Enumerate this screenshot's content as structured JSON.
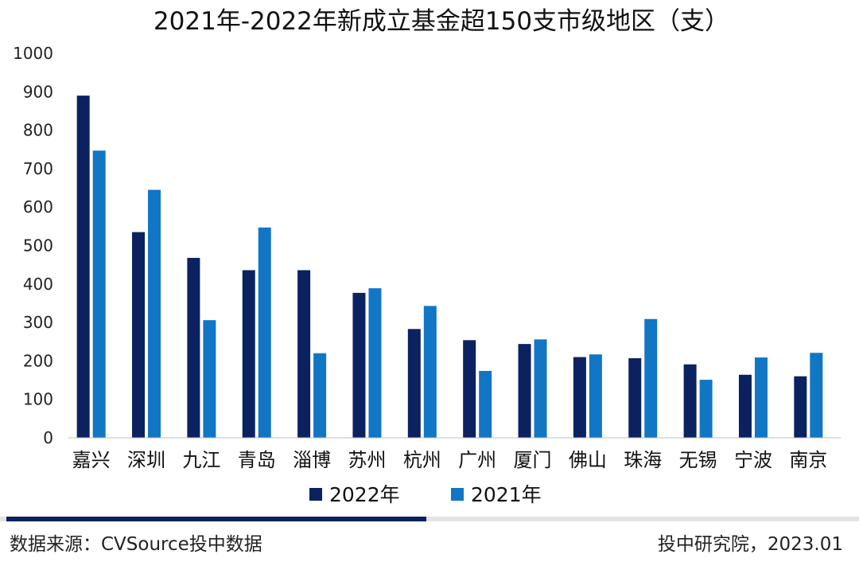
{
  "colors": {
    "series_2022": "#0b2160",
    "series_2021": "#1176c4",
    "footer_bar": "#0b2160",
    "footer_track": "#e4e4e4"
  },
  "footer": {
    "source": "数据来源：CVSource投中数据",
    "credit": "投中研究院，2023.01"
  },
  "chart_data": {
    "type": "bar",
    "title": "2021年-2022年新成立基金超150支市级地区（支）",
    "xlabel": "",
    "ylabel": "",
    "ylim": [
      0,
      1000
    ],
    "yticks": [
      "0",
      "100",
      "200",
      "300",
      "400",
      "500",
      "600",
      "700",
      "800",
      "900",
      "1000"
    ],
    "grid": false,
    "legend": "bottom-center",
    "categories": [
      "嘉兴",
      "深圳",
      "九江",
      "青岛",
      "淄博",
      "苏州",
      "杭州",
      "广州",
      "厦门",
      "佛山",
      "珠海",
      "无锡",
      "宁波",
      "南京"
    ],
    "series": [
      {
        "name": "2022年",
        "values": [
          890,
          535,
          468,
          436,
          436,
          377,
          283,
          254,
          244,
          210,
          207,
          191,
          164,
          160
        ]
      },
      {
        "name": "2021年",
        "values": [
          747,
          645,
          306,
          547,
          220,
          389,
          343,
          174,
          256,
          217,
          309,
          151,
          209,
          221
        ]
      }
    ]
  }
}
